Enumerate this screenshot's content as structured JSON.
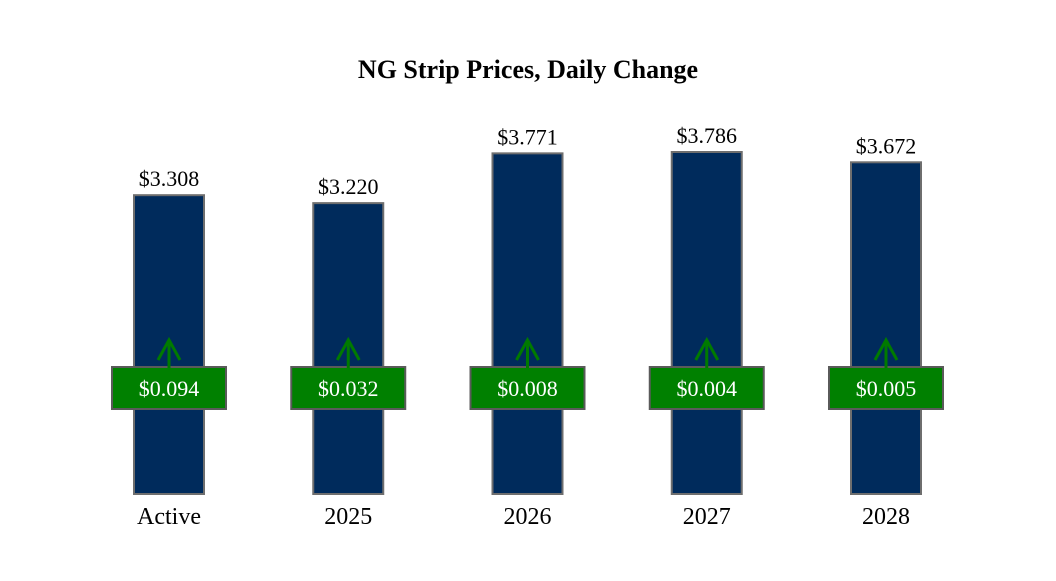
{
  "chart_data": {
    "type": "bar",
    "title": "NG Strip Prices, Daily Change",
    "categories": [
      "Active",
      "2025",
      "2026",
      "2027",
      "2028"
    ],
    "values": [
      3.308,
      3.22,
      3.771,
      3.786,
      3.672
    ],
    "value_labels": [
      "$3.308",
      "$3.220",
      "$3.771",
      "$3.786",
      "$3.672"
    ],
    "changes": [
      0.094,
      0.032,
      0.008,
      0.004,
      0.005
    ],
    "change_labels": [
      "$0.094",
      "$0.032",
      "$0.008",
      "$0.004",
      "$0.005"
    ],
    "change_direction": [
      "up",
      "up",
      "up",
      "up",
      "up"
    ],
    "ylim": [
      0,
      3.786
    ],
    "xlabel": "",
    "ylabel": "",
    "grid": false,
    "legend": "none",
    "colors": {
      "bar": "#002B5C",
      "bar_border": "#6E6E6E",
      "change_box": "#008000",
      "change_box_border": "#5A5A5A",
      "arrow": "#007A00",
      "change_text": "#FFFFFF",
      "label_text": "#000000"
    }
  }
}
